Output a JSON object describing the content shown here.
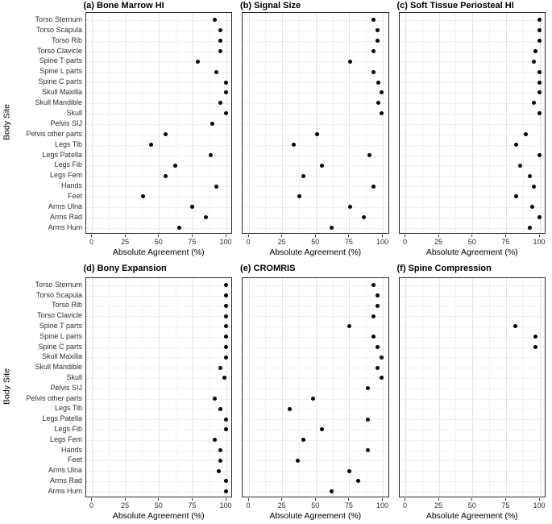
{
  "chart_data": {
    "type": "scatter",
    "layout": "small-multiples 2 rows x 3 columns, shared categorical y-axis, dot plot",
    "categories": [
      "Torso Sternum",
      "Torso Scapula",
      "Torso Rib",
      "Torso Clavicle",
      "Spine T parts",
      "Spine L parts",
      "Spine C parts",
      "Skull Maxilla",
      "Skull Mandible",
      "Skull",
      "Pelvis SIJ",
      "Pelvis other parts",
      "Legs Tib",
      "Legs Patella",
      "Legs Fib",
      "Legs Fem",
      "Hands",
      "Feet",
      "Arms Ulna",
      "Arms Rad",
      "Arms Hum"
    ],
    "xlabel": "Absolute Agreement (%)",
    "ylabel": "Body Site",
    "xlim": [
      0,
      100
    ],
    "xticks": [
      0,
      25,
      50,
      75,
      100
    ],
    "grid": "light vertical gridlines every 12.5%, light horizontal gridline per category, black panel border, no legend",
    "panels": [
      {
        "label": "(a) Bone Marrow HI",
        "values": [
          92,
          96,
          96,
          96,
          79,
          93,
          100,
          100,
          96,
          100,
          90,
          55,
          44,
          89,
          62,
          55,
          93,
          38,
          75,
          85,
          65
        ]
      },
      {
        "label": "(b) Signal Size",
        "values": [
          93,
          96,
          96,
          93,
          76,
          93,
          97,
          99,
          97,
          99,
          null,
          51,
          34,
          90,
          55,
          41,
          93,
          38,
          76,
          86,
          62
        ]
      },
      {
        "label": "(c) Soft Tissue Periosteal HI",
        "values": [
          100,
          100,
          100,
          97,
          96,
          100,
          100,
          100,
          96,
          100,
          null,
          90,
          83,
          100,
          86,
          93,
          96,
          83,
          95,
          100,
          93
        ]
      },
      {
        "label": "(d) Bony Expansion",
        "values": [
          100,
          100,
          100,
          100,
          100,
          100,
          100,
          100,
          96,
          99,
          null,
          92,
          96,
          100,
          100,
          92,
          96,
          96,
          95,
          100,
          100
        ]
      },
      {
        "label": "(e) CROMRIS",
        "values": [
          93,
          96,
          96,
          93,
          75,
          93,
          96,
          99,
          96,
          99,
          89,
          48,
          31,
          89,
          55,
          41,
          89,
          37,
          75,
          82,
          62
        ]
      },
      {
        "label": "(f) Spine Compression",
        "values": [
          null,
          null,
          null,
          null,
          82,
          97,
          97,
          null,
          null,
          null,
          null,
          null,
          null,
          null,
          null,
          null,
          null,
          null,
          null,
          null,
          null
        ]
      }
    ]
  },
  "colors": {
    "point": "#000000",
    "grid_major": "#e3e3e3",
    "grid_minor": "#f0f0f0",
    "panel_border": "#2b2b2b",
    "axis_text": "#2e2e2e",
    "title_text": "#000000",
    "background": "#ffffff"
  }
}
